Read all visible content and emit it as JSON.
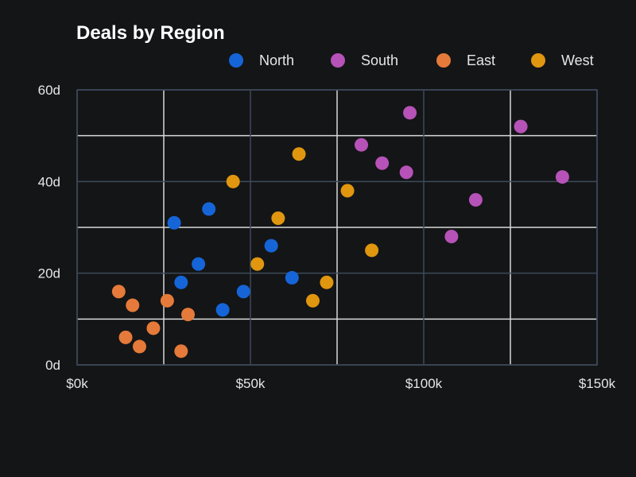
{
  "chart_data": {
    "type": "scatter",
    "title": "Deals by Region",
    "xlabel": "",
    "ylabel": "",
    "xlim": [
      0,
      150
    ],
    "ylim": [
      0,
      60
    ],
    "x_ticks": [
      0,
      50,
      100,
      150
    ],
    "x_tick_labels": [
      "$0k",
      "$50k",
      "$100k",
      "$150k"
    ],
    "y_ticks": [
      0,
      20,
      40,
      60
    ],
    "y_tick_labels": [
      "0d",
      "20d",
      "40d",
      "60d"
    ],
    "grid": true,
    "legend_position": "top",
    "series": [
      {
        "name": "North",
        "color": "#1565d8",
        "points": [
          [
            28,
            31
          ],
          [
            38,
            34
          ],
          [
            35,
            22
          ],
          [
            30,
            18
          ],
          [
            42,
            12
          ],
          [
            48,
            16
          ],
          [
            56,
            26
          ],
          [
            62,
            19
          ]
        ]
      },
      {
        "name": "South",
        "color": "#b652b8",
        "points": [
          [
            82,
            48
          ],
          [
            88,
            44
          ],
          [
            95,
            42
          ],
          [
            96,
            55
          ],
          [
            108,
            28
          ],
          [
            115,
            36
          ],
          [
            128,
            52
          ],
          [
            140,
            41
          ]
        ]
      },
      {
        "name": "East",
        "color": "#e57a3a",
        "points": [
          [
            12,
            16
          ],
          [
            16,
            13
          ],
          [
            14,
            6
          ],
          [
            18,
            4
          ],
          [
            22,
            8
          ],
          [
            26,
            14
          ],
          [
            30,
            3
          ],
          [
            32,
            11
          ]
        ]
      },
      {
        "name": "West",
        "color": "#e0960f",
        "points": [
          [
            45,
            40
          ],
          [
            52,
            22
          ],
          [
            58,
            32
          ],
          [
            64,
            46
          ],
          [
            68,
            14
          ],
          [
            72,
            18
          ],
          [
            78,
            38
          ],
          [
            85,
            25
          ]
        ]
      }
    ]
  },
  "colors": {
    "background": "#141516",
    "plot_border": "#3d4a5c",
    "major_grid": "#3d4a5c",
    "minor_grid": "#d8d8d8",
    "text": "#e6e6e6"
  }
}
